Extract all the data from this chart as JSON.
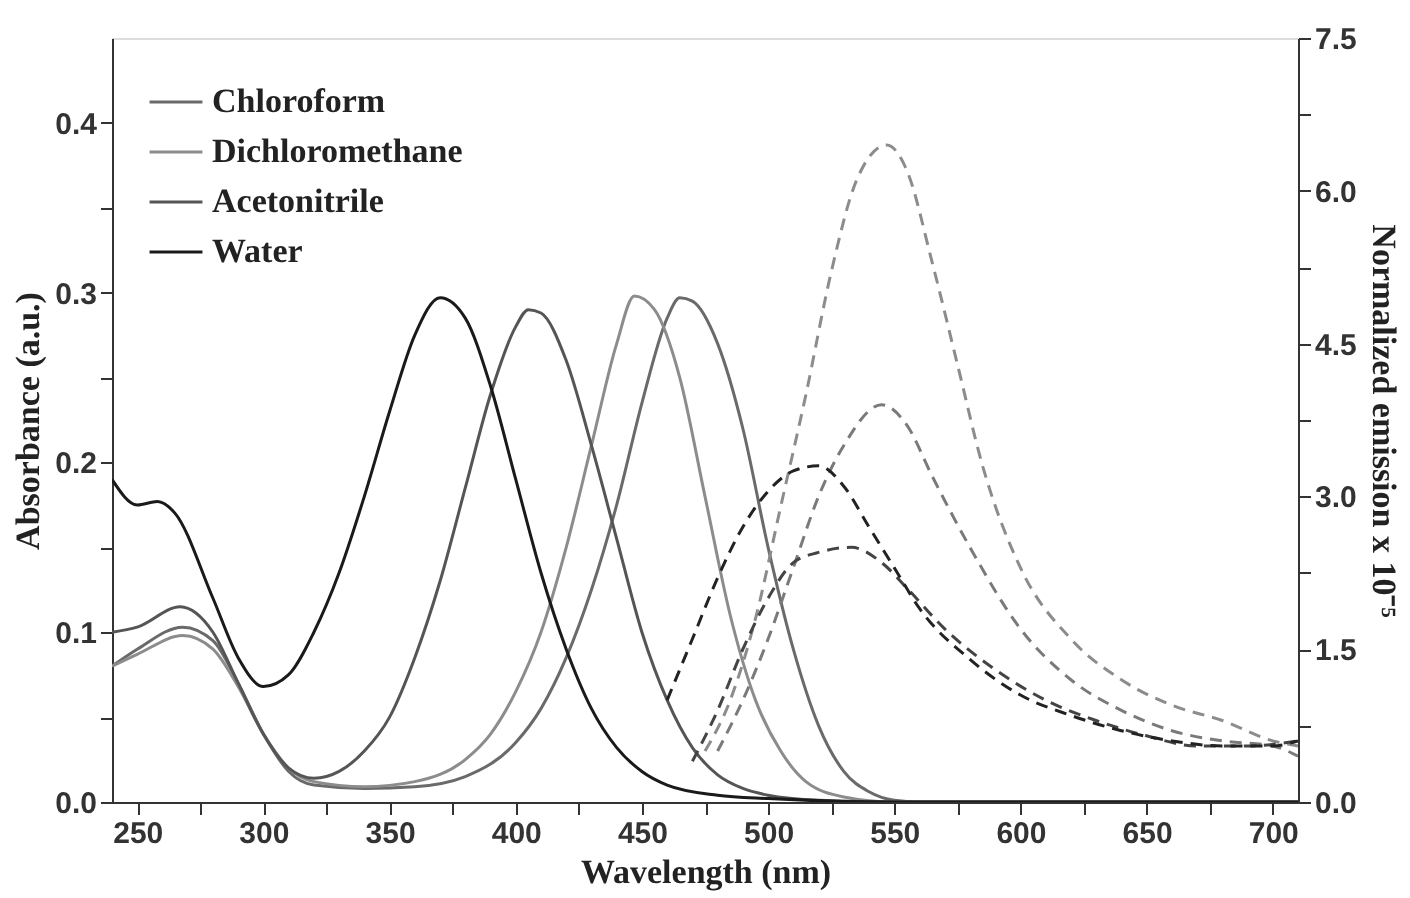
{
  "chart_data": {
    "type": "line",
    "xlabel": "Wavelength (nm)",
    "ylabel": "Absorbance (a.u.)",
    "y2label": "Normalized emission x 10⁻⁵",
    "xlim": [
      240,
      710
    ],
    "xticks": [
      250,
      {
        "value": 275,
        "label": null
      },
      300,
      {
        "value": 325,
        "label": null
      },
      350,
      {
        "value": 375,
        "label": null
      },
      400,
      {
        "value": 425,
        "label": null
      },
      450,
      {
        "value": 475,
        "label": null
      },
      500,
      {
        "value": 525,
        "label": null
      },
      550,
      {
        "value": 575,
        "label": null
      },
      600,
      {
        "value": 625,
        "label": null
      },
      650,
      {
        "value": 675,
        "label": null
      },
      700
    ],
    "ylim": [
      0,
      0.45
    ],
    "yticks": [
      {
        "value": 0,
        "label": "0.0"
      },
      {
        "value": 0.05,
        "label": null
      },
      0.1,
      {
        "value": 0.15,
        "label": null
      },
      0.2,
      {
        "value": 0.25,
        "label": null
      },
      0.3,
      {
        "value": 0.35,
        "label": null
      },
      0.4
    ],
    "y2lim": [
      0,
      7.5
    ],
    "y2ticks": [
      {
        "value": 0,
        "label": "0.0"
      },
      {
        "value": 0.75,
        "label": null
      },
      1.5,
      {
        "value": 2.25,
        "label": null
      },
      {
        "value": 3,
        "label": "3.0"
      },
      {
        "value": 3.75,
        "label": null
      },
      4.5,
      {
        "value": 5.25,
        "label": null
      },
      {
        "value": 6,
        "label": "6.0"
      },
      {
        "value": 6.75,
        "label": null
      },
      7.5
    ],
    "grid": false,
    "legend": "top left",
    "marker": "none",
    "series": [
      {
        "name": "Chloroform",
        "color": "#6a6a6a",
        "line_style": "solid",
        "x": [
          240,
          250,
          268,
          280,
          290,
          300,
          310,
          320,
          340,
          360,
          380,
          400,
          410,
          420,
          430,
          440,
          450,
          460,
          465,
          470,
          480,
          490,
          500,
          510,
          520,
          530,
          540,
          550,
          560,
          710
        ],
        "values": [
          0.08,
          0.09,
          0.103,
          0.095,
          0.07,
          0.04,
          0.018,
          0.01,
          0.008,
          0.009,
          0.015,
          0.035,
          0.055,
          0.085,
          0.125,
          0.175,
          0.235,
          0.285,
          0.297,
          0.295,
          0.27,
          0.22,
          0.15,
          0.09,
          0.045,
          0.018,
          0.006,
          0.001,
          0,
          0
        ]
      },
      {
        "name": "Dichloromethane",
        "color": "#8c8c8c",
        "line_style": "solid",
        "x": [
          240,
          250,
          268,
          280,
          290,
          300,
          310,
          320,
          340,
          360,
          380,
          390,
          400,
          410,
          420,
          430,
          440,
          447,
          455,
          465,
          475,
          485,
          495,
          505,
          515,
          530,
          550,
          710
        ],
        "values": [
          0.08,
          0.087,
          0.098,
          0.09,
          0.068,
          0.04,
          0.02,
          0.012,
          0.009,
          0.012,
          0.025,
          0.04,
          0.065,
          0.1,
          0.15,
          0.21,
          0.27,
          0.298,
          0.29,
          0.25,
          0.18,
          0.11,
          0.06,
          0.03,
          0.012,
          0.003,
          0,
          0
        ]
      },
      {
        "name": "Acetonitrile",
        "color": "#555555",
        "line_style": "solid",
        "x": [
          240,
          250,
          267,
          280,
          290,
          300,
          310,
          320,
          330,
          340,
          350,
          360,
          370,
          380,
          390,
          400,
          405,
          410,
          420,
          430,
          440,
          450,
          460,
          470,
          480,
          490,
          500,
          520,
          550,
          710
        ],
        "values": [
          0.1,
          0.103,
          0.115,
          0.1,
          0.07,
          0.04,
          0.02,
          0.014,
          0.018,
          0.03,
          0.05,
          0.085,
          0.13,
          0.185,
          0.24,
          0.28,
          0.29,
          0.288,
          0.26,
          0.21,
          0.155,
          0.1,
          0.06,
          0.032,
          0.016,
          0.008,
          0.004,
          0.001,
          0,
          0
        ]
      },
      {
        "name": "Water",
        "color": "#1a1a1a",
        "line_style": "solid",
        "x": [
          240,
          250,
          258,
          265,
          280,
          290,
          300,
          310,
          320,
          330,
          340,
          350,
          360,
          370,
          380,
          390,
          400,
          410,
          420,
          430,
          440,
          450,
          460,
          480,
          500,
          550,
          710
        ],
        "values": [
          0.19,
          0.175,
          0.177,
          0.17,
          0.12,
          0.085,
          0.068,
          0.075,
          0.1,
          0.135,
          0.18,
          0.23,
          0.275,
          0.297,
          0.285,
          0.245,
          0.19,
          0.135,
          0.09,
          0.055,
          0.032,
          0.018,
          0.01,
          0.004,
          0.002,
          0,
          0
        ]
      },
      {
        "color": "#7a7a7a",
        "line_style": "dashed",
        "axis": "y2",
        "x": [
          480,
          490,
          500,
          510,
          520,
          530,
          545,
          555,
          565,
          580,
          600,
          620,
          640,
          660,
          680,
          700,
          710
        ],
        "values": [
          0.5,
          1.0,
          1.6,
          2.3,
          3.0,
          3.5,
          3.9,
          3.7,
          3.2,
          2.5,
          1.7,
          1.2,
          0.9,
          0.7,
          0.6,
          0.55,
          0.45
        ]
      },
      {
        "color": "#8c8c8c",
        "line_style": "dashed",
        "axis": "y2",
        "x": [
          475,
          485,
          495,
          505,
          515,
          525,
          535,
          547,
          555,
          565,
          575,
          585,
          600,
          620,
          640,
          660,
          680,
          700,
          710
        ],
        "values": [
          0.5,
          1.0,
          1.8,
          2.9,
          4.0,
          5.2,
          6.1,
          6.45,
          6.2,
          5.3,
          4.3,
          3.3,
          2.3,
          1.6,
          1.2,
          0.95,
          0.8,
          0.6,
          0.55
        ]
      },
      {
        "color": "#444444",
        "line_style": "dashed",
        "axis": "y2",
        "x": [
          470,
          480,
          490,
          500,
          510,
          520,
          533,
          545,
          555,
          570,
          590,
          610,
          630,
          650,
          670,
          690,
          710
        ],
        "values": [
          0.4,
          0.9,
          1.5,
          2.0,
          2.35,
          2.45,
          2.5,
          2.35,
          2.1,
          1.7,
          1.3,
          1.0,
          0.8,
          0.65,
          0.55,
          0.55,
          0.6
        ]
      },
      {
        "color": "#222222",
        "line_style": "dashed",
        "axis": "y2",
        "x": [
          460,
          470,
          480,
          490,
          500,
          510,
          520,
          530,
          540,
          550,
          560,
          580,
          600,
          620,
          640,
          660,
          680,
          700,
          710
        ],
        "values": [
          1.0,
          1.6,
          2.2,
          2.7,
          3.05,
          3.25,
          3.3,
          3.1,
          2.7,
          2.3,
          1.9,
          1.4,
          1.05,
          0.85,
          0.7,
          0.6,
          0.55,
          0.55,
          0.6
        ]
      }
    ]
  }
}
